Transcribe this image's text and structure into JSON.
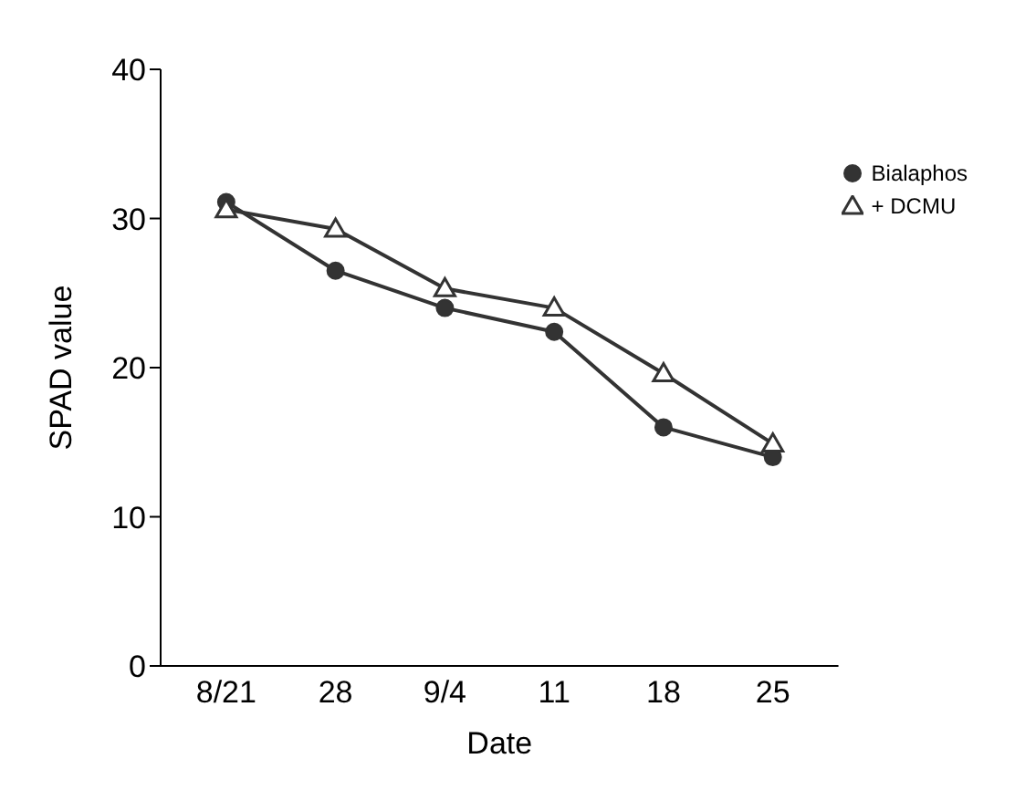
{
  "chart_data": {
    "type": "line",
    "xlabel": "Date",
    "ylabel": "SPAD value",
    "categories": [
      "8/21",
      "28",
      "9/4",
      "11",
      "18",
      "25"
    ],
    "series": [
      {
        "name": "Bialaphos",
        "color": "#333333",
        "marker": "circle",
        "values": [
          31.1,
          26.5,
          24.0,
          22.4,
          16.0,
          14.0
        ]
      },
      {
        "name": "+ DCMU",
        "color": "#333333",
        "marker": "triangle",
        "values": [
          30.6,
          29.3,
          25.3,
          24.0,
          19.6,
          14.9
        ]
      }
    ],
    "ylim": [
      0,
      40
    ],
    "yticks": [
      0,
      10,
      20,
      30,
      40
    ],
    "grid": false,
    "legend": "top right"
  }
}
